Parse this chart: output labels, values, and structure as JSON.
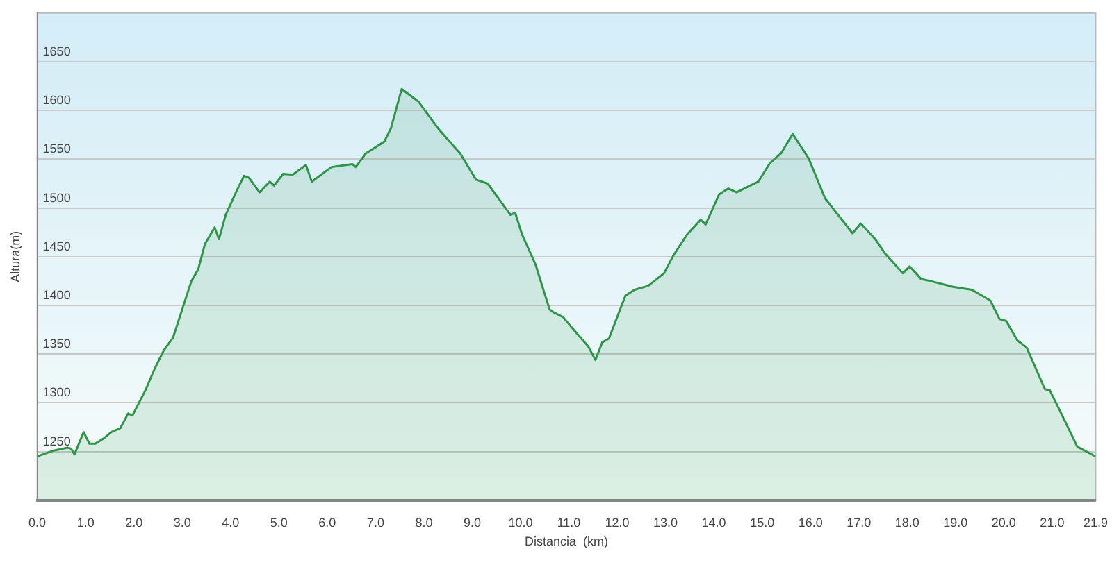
{
  "chart_data": {
    "type": "area",
    "xlabel": "Distancia  (km)",
    "ylabel": "Altura(m)",
    "x": [
      0,
      0.34,
      0.63,
      0.7,
      0.77,
      0.96,
      1.08,
      1.2,
      1.39,
      1.53,
      1.72,
      1.88,
      1.97,
      2.24,
      2.43,
      2.62,
      2.81,
      3.0,
      3.19,
      3.33,
      3.47,
      3.67,
      3.76,
      3.9,
      4.14,
      4.28,
      4.38,
      4.6,
      4.81,
      4.9,
      5.09,
      5.28,
      5.56,
      5.68,
      6.09,
      6.52,
      6.59,
      6.8,
      7.18,
      7.32,
      7.54,
      7.89,
      8.32,
      8.75,
      9.08,
      9.32,
      9.79,
      9.89,
      10.03,
      10.31,
      10.36,
      10.6,
      10.68,
      10.88,
      11.17,
      11.4,
      11.55,
      11.69,
      11.83,
      12.17,
      12.36,
      12.64,
      12.97,
      13.16,
      13.45,
      13.73,
      13.83,
      14.11,
      14.3,
      14.47,
      14.92,
      15.16,
      15.39,
      15.63,
      15.96,
      16.3,
      16.87,
      17.04,
      17.34,
      17.53,
      17.91,
      18.05,
      18.29,
      18.48,
      18.95,
      19.34,
      19.72,
      19.91,
      20.05,
      20.28,
      20.47,
      20.85,
      20.95,
      21.14,
      21.52,
      21.9
    ],
    "series": [
      {
        "color": "#2e9448",
        "values": [
          1245,
          1251,
          1254,
          1253,
          1247,
          1270,
          1258,
          1258,
          1264,
          1270,
          1274,
          1289,
          1287,
          1313,
          1335,
          1354,
          1367,
          1396,
          1425,
          1437,
          1463,
          1480,
          1468,
          1493,
          1519,
          1533,
          1531,
          1516,
          1527,
          1523,
          1535,
          1534,
          1544,
          1527,
          1542,
          1545,
          1542,
          1556,
          1568,
          1582,
          1622,
          1609,
          1580,
          1556,
          1529,
          1525,
          1493,
          1495,
          1473,
          1442,
          1434,
          1396,
          1393,
          1388,
          1371,
          1358,
          1344,
          1362,
          1366,
          1410,
          1416,
          1420,
          1433,
          1451,
          1473,
          1488,
          1483,
          1514,
          1520,
          1516,
          1527,
          1546,
          1556,
          1576,
          1551,
          1510,
          1474,
          1484,
          1468,
          1454,
          1433,
          1440,
          1427,
          1425,
          1419,
          1416,
          1405,
          1386,
          1384,
          1364,
          1357,
          1314,
          1313,
          1294,
          1255,
          1245
        ]
      }
    ],
    "xlim": [
      0,
      21.9
    ],
    "xticks": [
      {
        "value": 0,
        "label": "0.0"
      },
      {
        "value": 1,
        "label": "1.0"
      },
      {
        "value": 2,
        "label": "2.0"
      },
      {
        "value": 3,
        "label": "3.0"
      },
      {
        "value": 4,
        "label": "4.0"
      },
      {
        "value": 5,
        "label": "5.0"
      },
      {
        "value": 6,
        "label": "6.0"
      },
      {
        "value": 7,
        "label": "7.0"
      },
      {
        "value": 8,
        "label": "8.0"
      },
      {
        "value": 9,
        "label": "9.0"
      },
      {
        "value": 10,
        "label": "10.0"
      },
      {
        "value": 11,
        "label": "11.0"
      },
      {
        "value": 12,
        "label": "12.0"
      },
      {
        "value": 13,
        "label": "13.0"
      },
      {
        "value": 14,
        "label": "14.0"
      },
      {
        "value": 15,
        "label": "15.0"
      },
      {
        "value": 16,
        "label": "16.0"
      },
      {
        "value": 17,
        "label": "17.0"
      },
      {
        "value": 18,
        "label": "18.0"
      },
      {
        "value": 19,
        "label": "19.0"
      },
      {
        "value": 20,
        "label": "20.0"
      },
      {
        "value": 21,
        "label": "21.0"
      },
      {
        "value": 21.9,
        "label": "21.9"
      }
    ],
    "ylim": [
      1200,
      1700
    ],
    "yticks": [
      1250,
      1300,
      1350,
      1400,
      1450,
      1500,
      1550,
      1600,
      1650
    ],
    "grid": "y",
    "legend": false,
    "marker": "none",
    "line_style": "solid"
  }
}
